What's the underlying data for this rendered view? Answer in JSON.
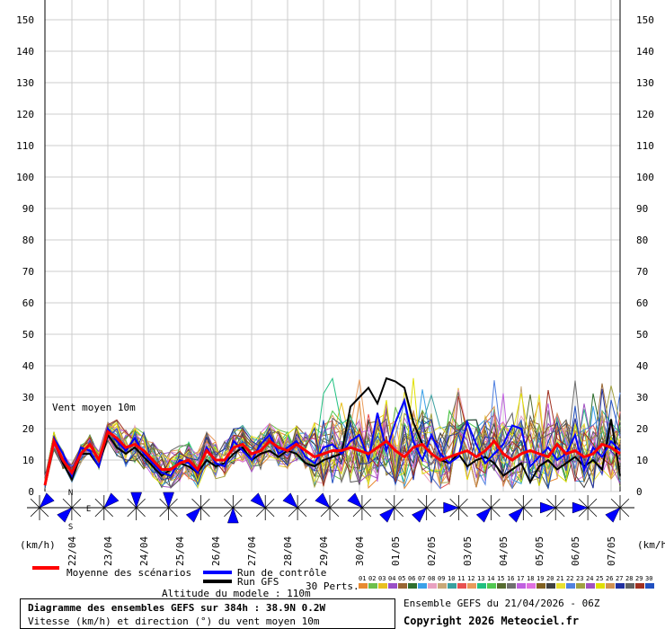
{
  "chart_data": {
    "type": "line",
    "title": "Diagramme des ensembles GEFS sur 384h : 38.9N 0.2W",
    "subtitle": "Vitesse (km/h) et direction (°) du vent moyen 10m",
    "panel_label": "Vent moyen 10m",
    "ylabel": "(km/h)",
    "ylim": [
      0,
      150
    ],
    "yticks": [
      0,
      10,
      20,
      30,
      40,
      50,
      60,
      70,
      80,
      90,
      100,
      110,
      120,
      130,
      140,
      150
    ],
    "x_labels": [
      "22/04",
      "23/04",
      "24/04",
      "25/04",
      "26/04",
      "27/04",
      "28/04",
      "29/04",
      "30/04",
      "01/05",
      "02/05",
      "03/05",
      "04/05",
      "05/05",
      "06/05",
      "07/05"
    ],
    "time_step_hours": 6,
    "series": [
      {
        "name": "Moyenne des scénarios",
        "color": "#ff0000",
        "values": [
          2,
          16,
          10,
          6,
          12,
          15,
          10,
          19,
          17,
          14,
          15,
          13,
          10,
          7,
          7,
          9,
          10,
          7,
          13,
          10,
          10,
          14,
          15,
          12,
          13,
          16,
          14,
          13,
          15,
          13,
          11,
          12,
          13,
          13,
          14,
          13,
          12,
          14,
          16,
          13,
          11,
          14,
          15,
          12,
          10,
          11,
          12,
          13,
          11,
          13,
          16,
          12,
          10,
          12,
          13,
          12,
          11,
          15,
          12,
          13,
          11,
          12,
          15,
          14,
          12
        ]
      },
      {
        "name": "Run de contrôle",
        "color": "#0000ff",
        "values": [
          2,
          17,
          12,
          5,
          14,
          13,
          8,
          20,
          16,
          13,
          17,
          12,
          9,
          6,
          5,
          10,
          9,
          6,
          14,
          9,
          8,
          16,
          13,
          10,
          15,
          18,
          12,
          14,
          16,
          11,
          9,
          14,
          15,
          12,
          16,
          18,
          10,
          25,
          13,
          22,
          29,
          16,
          10,
          18,
          12,
          9,
          11,
          22,
          15,
          9,
          12,
          15,
          21,
          20,
          8,
          11,
          14,
          10,
          12,
          18,
          7,
          14,
          11,
          16,
          13
        ]
      },
      {
        "name": "Run GFS",
        "color": "#000000",
        "values": [
          2,
          16,
          9,
          4,
          12,
          12,
          8,
          18,
          14,
          12,
          14,
          11,
          8,
          5,
          7,
          9,
          8,
          6,
          10,
          8,
          9,
          12,
          14,
          10,
          12,
          13,
          11,
          13,
          12,
          9,
          8,
          10,
          11,
          12,
          27,
          30,
          33,
          28,
          36,
          35,
          33,
          22,
          15,
          12,
          10,
          9,
          12,
          8,
          10,
          11,
          9,
          5,
          7,
          9,
          3,
          8,
          10,
          7,
          9,
          11,
          8,
          10,
          7,
          23,
          5
        ]
      }
    ],
    "perturbations": {
      "label": "30 Perts.",
      "numbers": [
        "01",
        "02",
        "03",
        "04",
        "05",
        "06",
        "07",
        "08",
        "09",
        "10",
        "11",
        "12",
        "13",
        "14",
        "15",
        "16",
        "17",
        "18",
        "19",
        "20",
        "21",
        "22",
        "23",
        "24",
        "25",
        "26",
        "27",
        "28",
        "29",
        "30"
      ],
      "colors": [
        "#e88a30",
        "#6dbf4b",
        "#e8c020",
        "#9a4fc7",
        "#996633",
        "#2f6f2f",
        "#3aa0e8",
        "#e8a0c0",
        "#c8a878",
        "#3aa0a0",
        "#e85050",
        "#e89a5a",
        "#20c080",
        "#50c850",
        "#556b2f",
        "#6f6f6f",
        "#c060e0",
        "#e070e0",
        "#806020",
        "#404040",
        "#e8e030",
        "#5080e0",
        "#a0a040",
        "#a050c0",
        "#e0e000",
        "#d09050",
        "#2030a0",
        "#606060",
        "#a03020",
        "#2050c0"
      ]
    },
    "wind_direction_markers": [
      "NE",
      "SW",
      "NE",
      "N",
      "N",
      "SW",
      "S",
      "NW",
      "NW",
      "NW",
      "NW",
      "SW",
      "SW",
      "W",
      "SW",
      "SW",
      "W",
      "W",
      "SW"
    ],
    "grid": true
  },
  "legend": {
    "mean": "Moyenne des scénarios",
    "control": "Run de contrôle",
    "gfs": "Run GFS",
    "perts": "30 Perts.",
    "altitude": "Altitude du modele : 110m"
  },
  "compass": {
    "n": "N",
    "e": "E",
    "s": "S"
  },
  "footer": {
    "run_info": "Ensemble GEFS du 21/04/2026 - 06Z",
    "copyright": "Copyright 2026 Meteociel.fr"
  }
}
